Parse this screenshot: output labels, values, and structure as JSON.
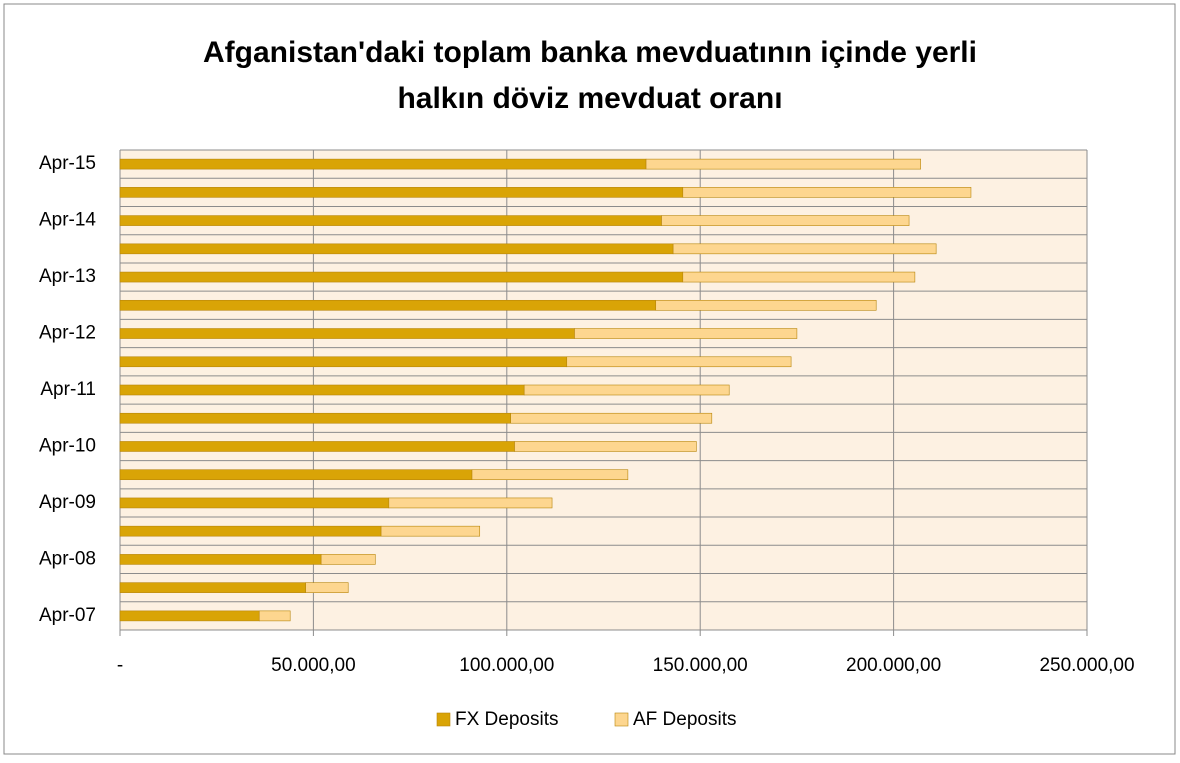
{
  "chart_data": {
    "type": "stacked_barh",
    "title": [
      "Afganistan'daki toplam banka mevduatının içinde yerli",
      "halkın döviz mevduat oranı"
    ],
    "categories": [
      "Apr-07",
      null,
      "Apr-08",
      null,
      "Apr-09",
      null,
      "Apr-10",
      null,
      "Apr-11",
      null,
      "Apr-12",
      null,
      "Apr-13",
      null,
      "Apr-14",
      null,
      "Apr-15"
    ],
    "series": [
      {
        "name": "FX Deposits",
        "color": "#d9a406",
        "values": [
          36000,
          48000,
          52000,
          67500,
          69500,
          91000,
          102000,
          101000,
          104500,
          115500,
          117500,
          138500,
          145500,
          143000,
          140000,
          145500,
          136000
        ]
      },
      {
        "name": "AF Deposits",
        "color": "#fdd68f",
        "values": [
          8000,
          11000,
          14000,
          25500,
          42200,
          40300,
          47000,
          52000,
          53000,
          58000,
          57500,
          57000,
          60000,
          68000,
          64000,
          74500,
          71000
        ]
      }
    ],
    "xlim": [
      0,
      250000
    ],
    "xticks": [
      {
        "value": 0,
        "label": "-"
      },
      {
        "value": 50000,
        "label": "50.000,00"
      },
      {
        "value": 100000,
        "label": "100.000,00"
      },
      {
        "value": 150000,
        "label": "150.000,00"
      },
      {
        "value": 200000,
        "label": "200.000,00"
      },
      {
        "value": 250000,
        "label": "250.000,00"
      }
    ],
    "grid": true,
    "legend": "bottom"
  }
}
